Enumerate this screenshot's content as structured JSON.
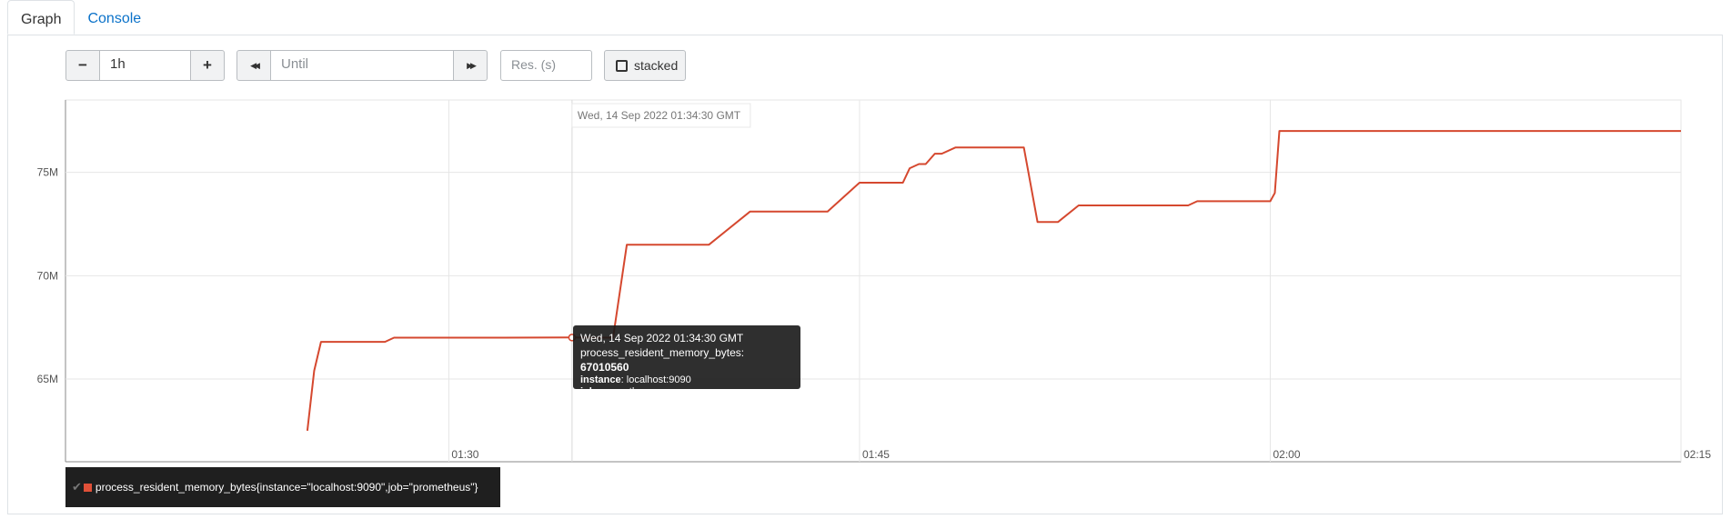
{
  "tabs": [
    {
      "label": "Graph",
      "active": true
    },
    {
      "label": "Console",
      "active": false
    }
  ],
  "controls": {
    "minus_label": "−",
    "range_value": "1h",
    "plus_label": "+",
    "back_label": "◀◀",
    "until_placeholder": "Until",
    "forward_label": "▶▶",
    "resolution_placeholder": "Res. (s)",
    "stacked_label": "stacked"
  },
  "colors": {
    "series": "#d5482f",
    "grid": "#e6e6e6",
    "axis": "#8a8a8a"
  },
  "chart_data": {
    "type": "line",
    "x_ticks": [
      "01:30",
      "01:45",
      "02:00",
      "02:15"
    ],
    "y_ticks": [
      "65M",
      "70M",
      "75M"
    ],
    "hover_label": "Wed, 14 Sep 2022 01:34:30 GMT",
    "xlim": [
      "01:16:00",
      "02:15:00"
    ],
    "ylim": [
      61.0,
      78.5
    ],
    "series": [
      {
        "name": "process_resident_memory_bytes{instance=\"localhost:9090\",job=\"prometheus\"}",
        "x": [
          "01:24:50",
          "01:25:05",
          "01:25:20",
          "01:25:35",
          "01:27:00",
          "01:27:40",
          "01:28:00",
          "01:28:30",
          "01:29:00",
          "01:30:00",
          "01:32:00",
          "01:34:30",
          "01:36:00",
          "01:36:30",
          "01:37:00",
          "01:38:30",
          "01:39:30",
          "01:41:00",
          "01:41:30",
          "01:43:30",
          "01:43:50",
          "01:45:00",
          "01:46:20",
          "01:46:35",
          "01:46:50",
          "01:47:10",
          "01:47:25",
          "01:47:45",
          "01:48:00",
          "01:48:30",
          "01:50:00",
          "01:50:30",
          "01:51:00",
          "01:51:30",
          "01:52:00",
          "01:52:15",
          "01:53:00",
          "01:55:00",
          "01:57:00",
          "01:57:20",
          "01:58:00",
          "02:00:00",
          "02:00:10",
          "02:00:20",
          "02:02:00",
          "02:05:00",
          "02:10:00",
          "02:15:00"
        ],
        "y": [
          62.5,
          65.4,
          66.8,
          66.8,
          66.8,
          66.8,
          67.0,
          67.0,
          67.0,
          67.0,
          67.0,
          67.01,
          67.0,
          71.5,
          71.5,
          71.5,
          71.5,
          73.1,
          73.1,
          73.1,
          73.1,
          74.5,
          74.5,
          74.5,
          75.2,
          75.4,
          75.4,
          75.9,
          75.9,
          76.2,
          76.2,
          76.2,
          76.2,
          72.6,
          72.6,
          72.6,
          73.4,
          73.4,
          73.4,
          73.6,
          73.6,
          73.6,
          74.0,
          77.0,
          77.0,
          77.0,
          77.0,
          77.0
        ]
      }
    ]
  },
  "tooltip": {
    "time": "Wed, 14 Sep 2022 01:34:30 GMT",
    "metric_name": "process_resident_memory_bytes:",
    "metric_value": "67010560",
    "instance_key": "instance",
    "instance_val": ": localhost:9090",
    "job_key": "job",
    "job_val": ": prometheus"
  },
  "legend": {
    "check": "✔",
    "label": "process_resident_memory_bytes{instance=\"localhost:9090\",job=\"prometheus\"}"
  }
}
